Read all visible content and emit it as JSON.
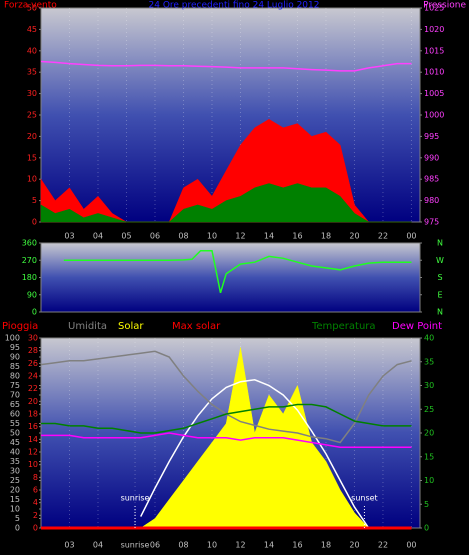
{
  "chart_data": [
    {
      "type": "area",
      "title": "24 Ore precedenti fino 24 Luglio 2012",
      "ylabel": "Forza vento",
      "y2label": "Pressione",
      "xlim": [
        0,
        13.3
      ],
      "xticks": [
        {
          "value": 1,
          "label": "03"
        },
        {
          "value": 2,
          "label": "04"
        },
        {
          "value": 3,
          "label": "05"
        },
        {
          "value": 4,
          "label": "06"
        },
        {
          "value": 5,
          "label": "08"
        },
        {
          "value": 6,
          "label": "10"
        },
        {
          "value": 7,
          "label": "12"
        },
        {
          "value": 8,
          "label": "14"
        },
        {
          "value": 9,
          "label": "16"
        },
        {
          "value": 10,
          "label": "18"
        },
        {
          "value": 11,
          "label": "20"
        },
        {
          "value": 12,
          "label": "22"
        },
        {
          "value": 13,
          "label": "00"
        }
      ],
      "ylim": [
        0,
        50
      ],
      "yticks": [
        0,
        5,
        10,
        15,
        20,
        25,
        30,
        35,
        40,
        45,
        50
      ],
      "ytick_color": "#ff2020",
      "y2lim": [
        975,
        1025
      ],
      "y2ticks": [
        975,
        980,
        985,
        990,
        995,
        1000,
        1005,
        1010,
        1015,
        1020,
        1025
      ],
      "y2tick_color": "#ff40ff",
      "grid": true,
      "x": [
        0,
        0.5,
        1,
        1.5,
        2,
        2.5,
        3,
        3.5,
        4,
        4.5,
        5,
        5.5,
        6,
        6.5,
        7,
        7.5,
        8,
        8.5,
        9,
        9.5,
        10,
        10.5,
        11,
        11.5,
        12,
        12.5,
        13
      ],
      "series": [
        {
          "color": "#ff0000",
          "fill": true,
          "values": [
            10,
            5,
            8,
            3,
            6,
            2,
            0,
            0,
            0,
            0,
            8,
            10,
            6,
            12,
            18,
            22,
            24,
            22,
            23,
            20,
            21,
            18,
            4,
            0,
            0,
            0,
            0
          ]
        },
        {
          "color": "#008000",
          "fill": true,
          "values": [
            4,
            2,
            3,
            1,
            2,
            1,
            0,
            0,
            0,
            0,
            3,
            4,
            3,
            5,
            6,
            8,
            9,
            8,
            9,
            8,
            8,
            6,
            2,
            0,
            0,
            0,
            0
          ]
        },
        {
          "color": "#ff40ff",
          "fill": false,
          "axis": "y2",
          "values": [
            1012.5,
            1012.3,
            1012,
            1011.8,
            1011.6,
            1011.5,
            1011.5,
            1011.6,
            1011.6,
            1011.5,
            1011.5,
            1011.4,
            1011.3,
            1011.2,
            1011,
            1011,
            1011,
            1011,
            1010.8,
            1010.6,
            1010.5,
            1010.3,
            1010.3,
            1011,
            1011.5,
            1012,
            1012
          ]
        }
      ]
    },
    {
      "type": "line",
      "xlim": [
        0,
        13.3
      ],
      "ylim": [
        0,
        360
      ],
      "yticks": [
        0,
        90,
        180,
        270,
        360
      ],
      "ytick_color": "#40ff40",
      "y2lim": [
        0,
        360
      ],
      "y2ticks": [
        {
          "value": 0,
          "label": "N"
        },
        {
          "value": 90,
          "label": "E"
        },
        {
          "value": 180,
          "label": "S"
        },
        {
          "value": 270,
          "label": "W"
        },
        {
          "value": 360,
          "label": "N"
        }
      ],
      "y2tick_color": "#40ff40",
      "grid": false,
      "x": [
        0.8,
        1,
        1.5,
        2,
        2.5,
        3,
        3.5,
        4,
        4.5,
        5,
        5.3,
        5.6,
        6,
        6.3,
        6.5,
        7,
        7.5,
        8,
        8.5,
        9,
        9.5,
        10,
        10.5,
        11,
        11.5,
        12,
        12.5,
        13
      ],
      "series": [
        {
          "color": "#20ff20",
          "fill": false,
          "values": [
            270,
            270,
            270,
            270,
            270,
            270,
            270,
            270,
            270,
            272,
            275,
            320,
            320,
            100,
            200,
            250,
            260,
            290,
            280,
            260,
            240,
            230,
            220,
            240,
            255,
            260,
            260,
            260
          ]
        }
      ]
    },
    {
      "type": "line",
      "xlim": [
        0,
        13.3
      ],
      "xticks": [
        {
          "value": 1,
          "label": "03"
        },
        {
          "value": 2,
          "label": "04"
        },
        {
          "value": 3.3,
          "label": "sunrise"
        },
        {
          "value": 4,
          "label": "06"
        },
        {
          "value": 5,
          "label": "08"
        },
        {
          "value": 6,
          "label": "10"
        },
        {
          "value": 7,
          "label": "12"
        },
        {
          "value": 8,
          "label": "14"
        },
        {
          "value": 9,
          "label": "16"
        },
        {
          "value": 10,
          "label": "18"
        },
        {
          "value": 11,
          "label": "20"
        },
        {
          "value": 12,
          "label": "22"
        },
        {
          "value": 13,
          "label": "00"
        }
      ],
      "ylim": [
        0,
        100
      ],
      "yticks": [
        0,
        5,
        10,
        15,
        20,
        25,
        30,
        35,
        40,
        45,
        50,
        55,
        60,
        65,
        70,
        75,
        80,
        85,
        90,
        95,
        100
      ],
      "ytick_color": "#c0c0c0",
      "y3lim": [
        0,
        30
      ],
      "y3ticks": [
        0,
        2,
        4,
        6,
        8,
        10,
        12,
        14,
        16,
        18,
        20,
        22,
        24,
        26,
        28,
        30
      ],
      "y3tick_color": "#ff2020",
      "y2lim": [
        0,
        40
      ],
      "y2ticks": [
        0,
        5,
        10,
        15,
        20,
        25,
        30,
        35,
        40
      ],
      "y2tick_color": "#20c020",
      "grid": true,
      "annotations": [
        {
          "text": "sunrise",
          "x": 3.3
        },
        {
          "text": "sunset",
          "x": 11.35
        }
      ],
      "x": [
        0,
        0.5,
        1,
        1.5,
        2,
        2.5,
        3,
        3.5,
        4,
        4.5,
        5,
        5.5,
        6,
        6.5,
        7,
        7.5,
        8,
        8.5,
        9,
        9.5,
        10,
        10.5,
        11,
        11.5,
        12,
        12.5,
        13
      ],
      "series": [
        {
          "name": "Solar",
          "color": "#ffff00",
          "fill": true,
          "values": [
            0,
            0,
            0,
            0,
            0,
            0,
            0,
            0,
            5,
            15,
            25,
            35,
            45,
            55,
            95,
            50,
            70,
            60,
            75,
            45,
            35,
            20,
            8,
            0,
            0,
            0,
            0
          ]
        },
        {
          "name": "Max solar",
          "color": "#ff0000",
          "fill": false,
          "line_color": "#ffffff",
          "values": [
            null,
            null,
            null,
            null,
            null,
            null,
            null,
            6,
            21,
            35,
            48,
            59,
            68,
            74,
            77,
            78,
            75,
            70,
            62,
            51,
            39,
            25,
            11,
            0,
            null,
            null,
            null
          ]
        },
        {
          "name": "Umidita",
          "color": "#808080",
          "fill": false,
          "values": [
            86,
            87,
            88,
            88,
            89,
            90,
            91,
            92,
            93,
            90,
            80,
            72,
            65,
            60,
            56,
            54,
            52,
            51,
            50,
            48,
            47,
            45,
            55,
            70,
            80,
            86,
            88
          ]
        },
        {
          "name": "Temperatura",
          "color": "#008000",
          "fill": false,
          "axis": "y2",
          "values": [
            22,
            22,
            21.5,
            21.5,
            21,
            21,
            20.5,
            20,
            20,
            20.5,
            21,
            22,
            23,
            24,
            24.5,
            25,
            25.5,
            25.5,
            26,
            26,
            25.5,
            24,
            22.5,
            22,
            21.5,
            21.5,
            21.5
          ]
        },
        {
          "name": "Dew Point",
          "color": "#ff00ff",
          "fill": false,
          "axis": "y2",
          "values": [
            19.5,
            19.5,
            19.5,
            19,
            19,
            19,
            19,
            19,
            19.5,
            20,
            19.5,
            19,
            19,
            19,
            18.5,
            19,
            19,
            19,
            18.5,
            18,
            17.5,
            17,
            17,
            17,
            17,
            17,
            17
          ]
        },
        {
          "name": "Pioggia",
          "color": "#ff0000",
          "fill": false,
          "axis": "y3",
          "values": [
            0,
            0,
            0,
            0,
            0,
            0,
            0,
            0,
            0,
            0,
            0,
            0,
            0,
            0,
            0,
            0,
            0,
            0,
            0,
            0,
            0,
            0,
            0,
            0,
            0,
            0,
            0
          ]
        }
      ]
    }
  ]
}
